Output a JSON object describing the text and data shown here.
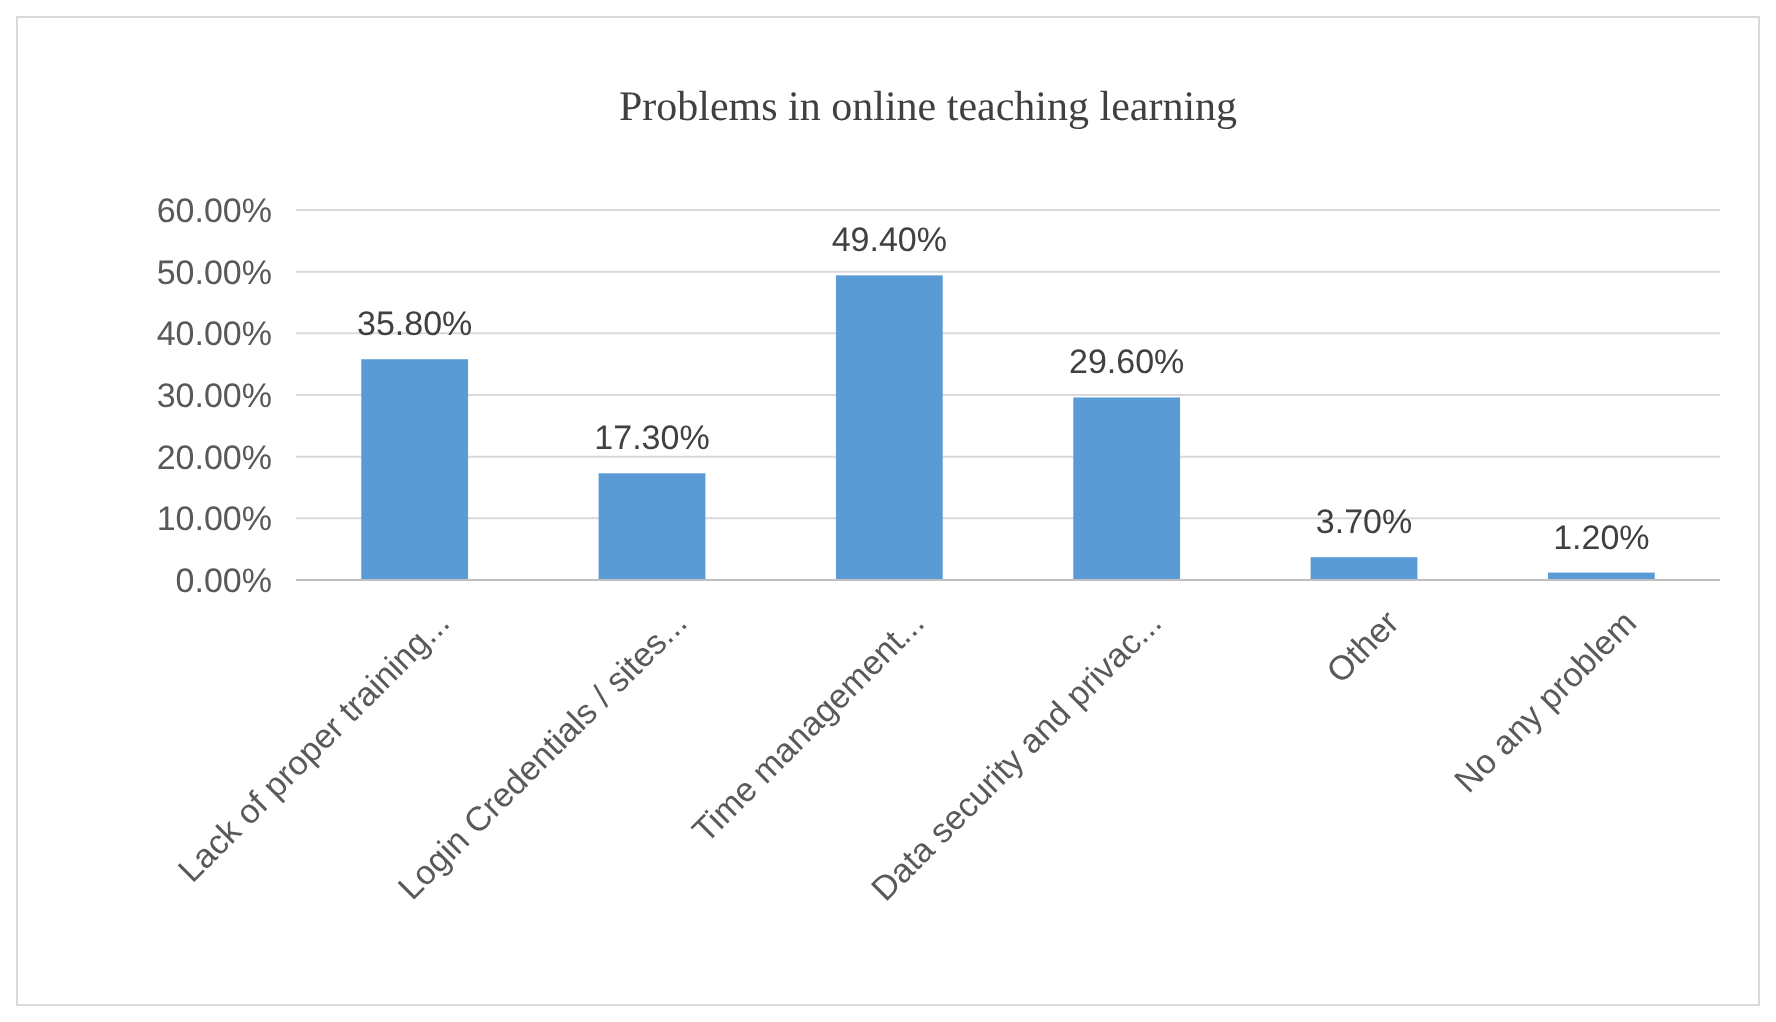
{
  "chart_data": {
    "type": "bar",
    "title": "Problems in online teaching learning",
    "categories": [
      "Lack of proper training...",
      "Login Credentials / sites...",
      "Time management...",
      "Data security and privac...",
      "Other",
      "No any problem"
    ],
    "values": [
      35.8,
      17.3,
      49.4,
      29.6,
      3.7,
      1.2
    ],
    "value_labels": [
      "35.80%",
      "17.30%",
      "49.40%",
      "29.60%",
      "3.70%",
      "1.20%"
    ],
    "color": "#5b9bd5",
    "ylim": [
      0,
      60
    ],
    "yticks": [
      {
        "value": 0,
        "label": "0.00%"
      },
      {
        "value": 10,
        "label": "10.00%"
      },
      {
        "value": 20,
        "label": "20.00%"
      },
      {
        "value": 30,
        "label": "30.00%"
      },
      {
        "value": 40,
        "label": "40.00%"
      },
      {
        "value": 50,
        "label": "50.00%"
      },
      {
        "value": 60,
        "label": "60.00%"
      }
    ],
    "grid": "y"
  }
}
